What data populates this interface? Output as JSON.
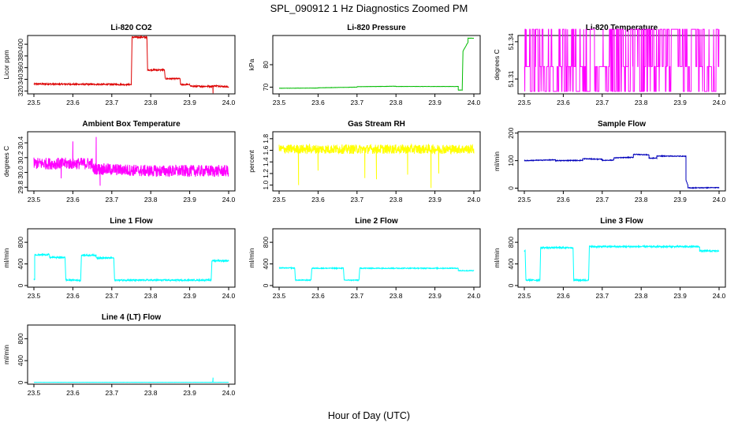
{
  "figure": {
    "title": "SPL_090912  1 Hz Diagnostics Zoomed PM",
    "xlabel": "Hour of Day (UTC)"
  },
  "chart_data": [
    {
      "type": "line",
      "title": "Li-820 CO2",
      "ylabel": "Licor ppm",
      "color": "#dd0000",
      "xlim": [
        23.5,
        24.0
      ],
      "ylim": [
        315,
        415
      ],
      "xticks": [
        "23.5",
        "23.6",
        "23.7",
        "23.8",
        "23.9",
        "24.0"
      ],
      "yticks": [
        "320",
        "340",
        "360",
        "380",
        "400"
      ],
      "noise": 1.2,
      "segments": [
        [
          23.5,
          23.75,
          332,
          331
        ],
        [
          23.752,
          23.79,
          412,
          412
        ],
        [
          23.792,
          23.835,
          356,
          356
        ],
        [
          23.837,
          23.875,
          341,
          341
        ],
        [
          23.877,
          23.9,
          331,
          331
        ],
        [
          23.902,
          23.96,
          328,
          328
        ],
        [
          23.962,
          24.0,
          329,
          327
        ]
      ],
      "spikes": [
        [
          23.96,
          316
        ]
      ]
    },
    {
      "type": "line",
      "title": "Li-820 Pressure",
      "ylabel": "kPa",
      "color": "#00bb00",
      "xlim": [
        23.5,
        24.0
      ],
      "ylim": [
        67,
        93
      ],
      "xticks": [
        "23.5",
        "23.6",
        "23.7",
        "23.8",
        "23.9",
        "24.0"
      ],
      "yticks": [
        "70",
        "80"
      ],
      "noise": 0.05,
      "segments": [
        [
          23.5,
          23.6,
          69.5,
          69.6
        ],
        [
          23.6,
          23.7,
          69.7,
          70.0
        ],
        [
          23.7,
          23.8,
          70.2,
          70.4
        ],
        [
          23.8,
          23.96,
          70.3,
          70.3
        ],
        [
          23.96,
          23.97,
          68.7,
          68.7
        ],
        [
          23.972,
          23.985,
          86,
          90
        ],
        [
          23.985,
          24.0,
          91.8,
          91.8
        ]
      ],
      "spikes": []
    },
    {
      "type": "line",
      "title": "Li-820 Temperature",
      "ylabel": "degrees C",
      "color": "#ff00ff",
      "xlim": [
        23.5,
        24.0
      ],
      "ylim": [
        51.298,
        51.345
      ],
      "xticks": [
        "23.5",
        "23.6",
        "23.7",
        "23.8",
        "23.9",
        "24.0"
      ],
      "yticks": [
        "51.31",
        "51.34"
      ],
      "noise": 0,
      "levels": [
        51.3,
        51.32,
        51.35
      ],
      "segments": [],
      "spikes": []
    },
    {
      "type": "line",
      "title": "Ambient Box Temperature",
      "ylabel": "degrees C",
      "color": "#ff00ff",
      "xlim": [
        23.5,
        24.0
      ],
      "ylim": [
        29.75,
        30.55
      ],
      "xticks": [
        "23.5",
        "23.6",
        "23.7",
        "23.8",
        "23.9",
        "24.0"
      ],
      "yticks": [
        "29.8",
        "30.0",
        "30.2",
        "30.4"
      ],
      "noise": 0.08,
      "segments": [
        [
          23.5,
          23.65,
          30.12,
          30.12
        ],
        [
          23.65,
          23.8,
          30.05,
          30.02
        ],
        [
          23.8,
          24.0,
          30.02,
          30.02
        ]
      ],
      "spikes": [
        [
          23.6,
          30.42
        ],
        [
          23.66,
          30.48
        ],
        [
          23.67,
          29.82
        ],
        [
          23.57,
          29.92
        ]
      ]
    },
    {
      "type": "line",
      "title": "Gas Stream RH",
      "ylabel": "percent",
      "color": "#ffff00",
      "xlim": [
        23.5,
        24.0
      ],
      "ylim": [
        0.9,
        1.92
      ],
      "xticks": [
        "23.5",
        "23.6",
        "23.7",
        "23.8",
        "23.9",
        "24.0"
      ],
      "yticks": [
        "1.0",
        "1.2",
        "1.4",
        "1.6",
        "1.8"
      ],
      "noise": 0.08,
      "segments": [
        [
          23.5,
          24.0,
          1.62,
          1.62
        ]
      ],
      "spikes": [
        [
          23.89,
          0.95
        ],
        [
          23.55,
          1.0
        ],
        [
          23.72,
          1.12
        ],
        [
          23.83,
          1.18
        ],
        [
          23.6,
          1.25
        ],
        [
          23.75,
          1.1
        ],
        [
          23.91,
          1.2
        ]
      ]
    },
    {
      "type": "line",
      "title": "Sample Flow",
      "ylabel": "ml/min",
      "color": "#0000bb",
      "xlim": [
        23.5,
        24.0
      ],
      "ylim": [
        -10,
        205
      ],
      "xticks": [
        "23.5",
        "23.6",
        "23.7",
        "23.8",
        "23.9",
        "24.0"
      ],
      "yticks": [
        "0",
        "100",
        "200"
      ],
      "noise": 1.3,
      "segments": [
        [
          23.5,
          23.58,
          100,
          103
        ],
        [
          23.58,
          23.65,
          100,
          101
        ],
        [
          23.65,
          23.7,
          107,
          105
        ],
        [
          23.7,
          23.73,
          101,
          102
        ],
        [
          23.73,
          23.78,
          110,
          112
        ],
        [
          23.78,
          23.82,
          123,
          121
        ],
        [
          23.82,
          23.84,
          109,
          109
        ],
        [
          23.84,
          23.915,
          117,
          116
        ],
        [
          23.915,
          23.92,
          30,
          10
        ],
        [
          23.92,
          24.0,
          1,
          2
        ]
      ],
      "spikes": []
    },
    {
      "type": "line",
      "title": "Line 1 Flow",
      "ylabel": "ml/min",
      "color": "#00ffff",
      "xlim": [
        23.5,
        24.0
      ],
      "ylim": [
        -30,
        1050
      ],
      "xticks": [
        "23.5",
        "23.6",
        "23.7",
        "23.8",
        "23.9",
        "24.0"
      ],
      "yticks": [
        "0",
        "400",
        "800"
      ],
      "noise": 14,
      "segments": [
        [
          23.5,
          23.502,
          120,
          120
        ],
        [
          23.502,
          23.54,
          570,
          570
        ],
        [
          23.54,
          23.58,
          520,
          520
        ],
        [
          23.582,
          23.62,
          100,
          100
        ],
        [
          23.622,
          23.66,
          560,
          560
        ],
        [
          23.66,
          23.705,
          510,
          510
        ],
        [
          23.707,
          23.955,
          100,
          100
        ],
        [
          23.957,
          24.0,
          460,
          460
        ]
      ],
      "spikes": []
    },
    {
      "type": "line",
      "title": "Line 2 Flow",
      "ylabel": "ml/min",
      "color": "#00ffff",
      "xlim": [
        23.5,
        24.0
      ],
      "ylim": [
        -30,
        1050
      ],
      "xticks": [
        "23.5",
        "23.6",
        "23.7",
        "23.8",
        "23.9",
        "24.0"
      ],
      "yticks": [
        "0",
        "400",
        "800"
      ],
      "noise": 8,
      "segments": [
        [
          23.5,
          23.54,
          325,
          325
        ],
        [
          23.542,
          23.582,
          100,
          100
        ],
        [
          23.584,
          23.665,
          320,
          320
        ],
        [
          23.667,
          23.705,
          100,
          100
        ],
        [
          23.707,
          23.96,
          320,
          320
        ],
        [
          23.96,
          24.0,
          275,
          275
        ]
      ],
      "spikes": []
    },
    {
      "type": "line",
      "title": "Line 3 Flow",
      "ylabel": "ml/min",
      "color": "#00ffff",
      "xlim": [
        23.5,
        24.0
      ],
      "ylim": [
        -30,
        1050
      ],
      "xticks": [
        "23.5",
        "23.6",
        "23.7",
        "23.8",
        "23.9",
        "24.0"
      ],
      "yticks": [
        "0",
        "400",
        "800"
      ],
      "noise": 14,
      "segments": [
        [
          23.5,
          23.502,
          640,
          640
        ],
        [
          23.504,
          23.54,
          100,
          100
        ],
        [
          23.542,
          23.625,
          700,
          700
        ],
        [
          23.627,
          23.665,
          100,
          100
        ],
        [
          23.667,
          23.95,
          720,
          720
        ],
        [
          23.95,
          24.0,
          640,
          640
        ]
      ],
      "spikes": []
    },
    {
      "type": "line",
      "title": "Line 4 (LT) Flow",
      "ylabel": "ml/min",
      "color": "#00ffff",
      "xlim": [
        23.5,
        24.0
      ],
      "ylim": [
        -30,
        1050
      ],
      "xticks": [
        "23.5",
        "23.6",
        "23.7",
        "23.8",
        "23.9",
        "24.0"
      ],
      "yticks": [
        "0",
        "400",
        "800"
      ],
      "noise": 1,
      "segments": [
        [
          23.5,
          24.0,
          5,
          5
        ]
      ],
      "spikes": [
        [
          23.96,
          90
        ]
      ]
    }
  ]
}
